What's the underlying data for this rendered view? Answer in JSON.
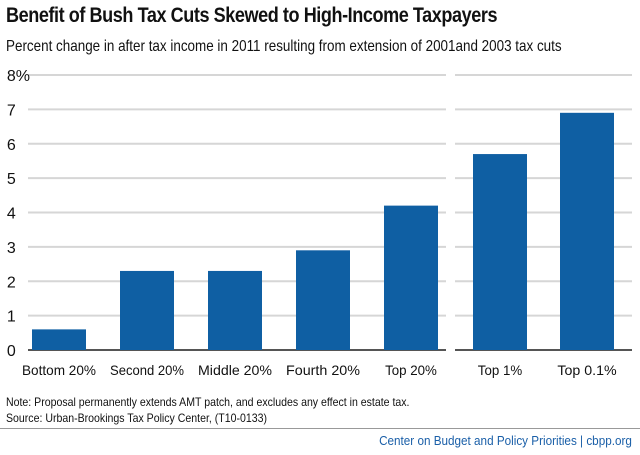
{
  "chart_data": {
    "type": "bar",
    "title": "Benefit of Bush Tax Cuts Skewed to High-Income Taxpayers",
    "subtitle": "Percent change in after tax income in 2011 resulting from extension of 2001and 2003 tax cuts",
    "categories": [
      "Bottom 20%",
      "Second 20%",
      "Middle 20%",
      "Fourth 20%",
      "Top 20%",
      "Top 1%",
      "Top 0.1%"
    ],
    "values": [
      0.6,
      2.3,
      2.3,
      2.9,
      4.2,
      5.7,
      6.9
    ],
    "ylim": [
      0,
      8
    ],
    "yticks": [
      "0",
      "1",
      "2",
      "3",
      "4",
      "5",
      "6",
      "7",
      "8%"
    ],
    "grid": true,
    "bar_color": "#0f5fa3"
  },
  "notes": {
    "note": "Note: Proposal permanently extends AMT patch, and excludes any effect in estate tax.",
    "source": "Source: Urban-Brookings Tax Policy Center, (T10-0133)"
  },
  "credit": "Center on Budget and Policy Priorities | cbpp.org"
}
